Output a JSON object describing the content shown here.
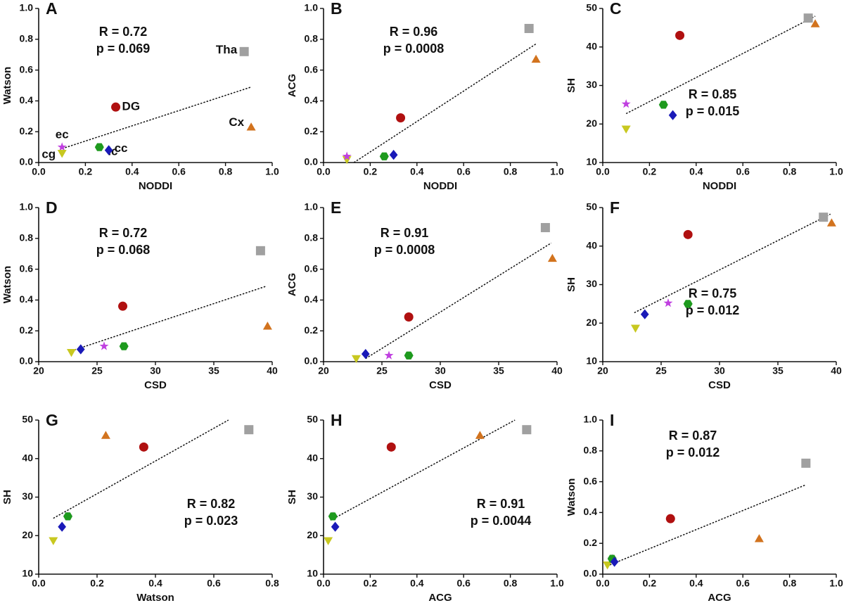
{
  "chart_data": [
    {
      "type": "scatter",
      "panel": "A",
      "xlabel": "NODDI",
      "ylabel": "Watson",
      "annotations": [
        "R = 0.72",
        "p = 0.069"
      ],
      "xlim": [
        0,
        1
      ],
      "ylim": [
        0,
        1
      ],
      "xticks": [
        {
          "value": 0,
          "label": "0.0"
        },
        0.2,
        0.4,
        0.6,
        0.8,
        {
          "value": 1,
          "label": "1.0"
        }
      ],
      "yticks": [
        {
          "value": 0,
          "label": "0.0"
        },
        0.2,
        0.4,
        0.6,
        0.8,
        {
          "value": 1,
          "label": "1.0"
        }
      ],
      "series": [
        {
          "name": "Tha",
          "color": "#a0a0a0",
          "marker": "square",
          "x": [
            0.88
          ],
          "y": [
            0.72
          ]
        },
        {
          "name": "DG",
          "color": "#b01010",
          "marker": "circle",
          "x": [
            0.33
          ],
          "y": [
            0.36
          ]
        },
        {
          "name": "Cx",
          "color": "#d2731e",
          "marker": "triangle-up",
          "x": [
            0.91
          ],
          "y": [
            0.23
          ]
        },
        {
          "name": "ec",
          "color": "#c040e0",
          "marker": "star",
          "x": [
            0.1
          ],
          "y": [
            0.1
          ]
        },
        {
          "name": "cg",
          "color": "#c8c820",
          "marker": "triangle-down",
          "x": [
            0.1
          ],
          "y": [
            0.06
          ]
        },
        {
          "name": "ic",
          "color": "#1e9a1e",
          "marker": "hexagon",
          "x": [
            0.26
          ],
          "y": [
            0.1
          ]
        },
        {
          "name": "cc",
          "color": "#1a1ab8",
          "marker": "diamond",
          "x": [
            0.3
          ],
          "y": [
            0.08
          ]
        }
      ],
      "fit": {
        "x": [
          0.1,
          0.91
        ],
        "y": [
          0.09,
          0.49
        ]
      }
    },
    {
      "type": "scatter",
      "panel": "B",
      "xlabel": "NODDI",
      "ylabel": "ACG",
      "annotations": [
        "R = 0.96",
        "p = 0.0008"
      ],
      "xlim": [
        0,
        1
      ],
      "ylim": [
        0,
        1
      ],
      "xticks": [
        {
          "value": 0,
          "label": "0.0"
        },
        0.2,
        0.4,
        0.6,
        0.8,
        {
          "value": 1,
          "label": "1.0"
        }
      ],
      "yticks": [
        {
          "value": 0,
          "label": "0.0"
        },
        0.2,
        0.4,
        0.6,
        0.8,
        {
          "value": 1,
          "label": "1.0"
        }
      ],
      "series": [
        {
          "color": "#a0a0a0",
          "marker": "square",
          "x": [
            0.88
          ],
          "y": [
            0.87
          ]
        },
        {
          "color": "#b01010",
          "marker": "circle",
          "x": [
            0.33
          ],
          "y": [
            0.29
          ]
        },
        {
          "color": "#d2731e",
          "marker": "triangle-up",
          "x": [
            0.91
          ],
          "y": [
            0.67
          ]
        },
        {
          "color": "#c8c820",
          "marker": "triangle-down",
          "x": [
            0.1
          ],
          "y": [
            0.02
          ]
        },
        {
          "color": "#c040e0",
          "marker": "star",
          "x": [
            0.1
          ],
          "y": [
            0.04
          ]
        },
        {
          "color": "#1e9a1e",
          "marker": "hexagon",
          "x": [
            0.26
          ],
          "y": [
            0.04
          ]
        },
        {
          "color": "#1a1ab8",
          "marker": "diamond",
          "x": [
            0.3
          ],
          "y": [
            0.05
          ]
        }
      ],
      "fit": {
        "x": [
          0.13,
          0.91
        ],
        "y": [
          0,
          0.77
        ]
      }
    },
    {
      "type": "scatter",
      "panel": "C",
      "xlabel": "NODDI",
      "ylabel": "SH",
      "annotations": [
        "R = 0.85",
        "p = 0.015"
      ],
      "xlim": [
        0,
        1
      ],
      "ylim": [
        10,
        50
      ],
      "xticks": [
        {
          "value": 0,
          "label": "0.0"
        },
        0.2,
        0.4,
        0.6,
        0.8,
        {
          "value": 1,
          "label": "1.0"
        }
      ],
      "yticks": [
        10,
        20,
        30,
        40,
        50
      ],
      "series": [
        {
          "color": "#a0a0a0",
          "marker": "square",
          "x": [
            0.88
          ],
          "y": [
            47.5
          ]
        },
        {
          "color": "#b01010",
          "marker": "circle",
          "x": [
            0.33
          ],
          "y": [
            43
          ]
        },
        {
          "color": "#d2731e",
          "marker": "triangle-up",
          "x": [
            0.91
          ],
          "y": [
            46
          ]
        },
        {
          "color": "#c040e0",
          "marker": "star",
          "x": [
            0.1
          ],
          "y": [
            25.2
          ]
        },
        {
          "color": "#c8c820",
          "marker": "triangle-down",
          "x": [
            0.1
          ],
          "y": [
            18.7
          ]
        },
        {
          "color": "#1e9a1e",
          "marker": "hexagon",
          "x": [
            0.26
          ],
          "y": [
            25
          ]
        },
        {
          "color": "#1a1ab8",
          "marker": "diamond",
          "x": [
            0.3
          ],
          "y": [
            22.3
          ]
        }
      ],
      "fit": {
        "x": [
          0.1,
          0.91
        ],
        "y": [
          22.7,
          48
        ]
      }
    },
    {
      "type": "scatter",
      "panel": "D",
      "xlabel": "CSD",
      "ylabel": "Watson",
      "annotations": [
        "R = 0.72",
        "p = 0.068"
      ],
      "xlim": [
        20,
        40
      ],
      "ylim": [
        0,
        1
      ],
      "xticks": [
        20,
        25,
        30,
        35,
        40
      ],
      "yticks": [
        {
          "value": 0,
          "label": "0.0"
        },
        0.2,
        0.4,
        0.6,
        0.8,
        {
          "value": 1,
          "label": "1.0"
        }
      ],
      "series": [
        {
          "color": "#a0a0a0",
          "marker": "square",
          "x": [
            39
          ],
          "y": [
            0.72
          ]
        },
        {
          "color": "#b01010",
          "marker": "circle",
          "x": [
            27.2
          ],
          "y": [
            0.36
          ]
        },
        {
          "color": "#d2731e",
          "marker": "triangle-up",
          "x": [
            39.6
          ],
          "y": [
            0.23
          ]
        },
        {
          "color": "#c040e0",
          "marker": "star",
          "x": [
            25.6
          ],
          "y": [
            0.1
          ]
        },
        {
          "color": "#c8c820",
          "marker": "triangle-down",
          "x": [
            22.8
          ],
          "y": [
            0.06
          ]
        },
        {
          "color": "#1e9a1e",
          "marker": "hexagon",
          "x": [
            27.3
          ],
          "y": [
            0.1
          ]
        },
        {
          "color": "#1a1ab8",
          "marker": "diamond",
          "x": [
            23.6
          ],
          "y": [
            0.08
          ]
        }
      ],
      "fit": {
        "x": [
          22.8,
          39.5
        ],
        "y": [
          0.07,
          0.49
        ]
      }
    },
    {
      "type": "scatter",
      "panel": "E",
      "xlabel": "CSD",
      "ylabel": "ACG",
      "annotations": [
        "R = 0.91",
        "p = 0.0008"
      ],
      "xlim": [
        20,
        40
      ],
      "ylim": [
        0,
        1
      ],
      "xticks": [
        20,
        25,
        30,
        35,
        40
      ],
      "yticks": [
        {
          "value": 0,
          "label": "0.0"
        },
        0.2,
        0.4,
        0.6,
        0.8,
        {
          "value": 1,
          "label": "1.0"
        }
      ],
      "series": [
        {
          "color": "#a0a0a0",
          "marker": "square",
          "x": [
            39
          ],
          "y": [
            0.87
          ]
        },
        {
          "color": "#b01010",
          "marker": "circle",
          "x": [
            27.3
          ],
          "y": [
            0.29
          ]
        },
        {
          "color": "#d2731e",
          "marker": "triangle-up",
          "x": [
            39.6
          ],
          "y": [
            0.67
          ]
        },
        {
          "color": "#c040e0",
          "marker": "star",
          "x": [
            25.6
          ],
          "y": [
            0.04
          ]
        },
        {
          "color": "#c8c820",
          "marker": "triangle-down",
          "x": [
            22.8
          ],
          "y": [
            0.02
          ]
        },
        {
          "color": "#1e9a1e",
          "marker": "hexagon",
          "x": [
            27.3
          ],
          "y": [
            0.04
          ]
        },
        {
          "color": "#1a1ab8",
          "marker": "diamond",
          "x": [
            23.6
          ],
          "y": [
            0.05
          ]
        }
      ],
      "fit": {
        "x": [
          23.6,
          39.5
        ],
        "y": [
          0.02,
          0.77
        ]
      }
    },
    {
      "type": "scatter",
      "panel": "F",
      "xlabel": "CSD",
      "ylabel": "SH",
      "annotations": [
        "R = 0.75",
        "p = 0.012"
      ],
      "xlim": [
        20,
        40
      ],
      "ylim": [
        10,
        50
      ],
      "xticks": [
        20,
        25,
        30,
        35,
        40
      ],
      "yticks": [
        10,
        20,
        30,
        40,
        50
      ],
      "series": [
        {
          "color": "#a0a0a0",
          "marker": "square",
          "x": [
            38.9
          ],
          "y": [
            47.5
          ]
        },
        {
          "color": "#b01010",
          "marker": "circle",
          "x": [
            27.3
          ],
          "y": [
            43
          ]
        },
        {
          "color": "#d2731e",
          "marker": "triangle-up",
          "x": [
            39.6
          ],
          "y": [
            46
          ]
        },
        {
          "color": "#c040e0",
          "marker": "star",
          "x": [
            25.6
          ],
          "y": [
            25.2
          ]
        },
        {
          "color": "#c8c820",
          "marker": "triangle-down",
          "x": [
            22.8
          ],
          "y": [
            18.7
          ]
        },
        {
          "color": "#1e9a1e",
          "marker": "hexagon",
          "x": [
            27.3
          ],
          "y": [
            25
          ]
        },
        {
          "color": "#1a1ab8",
          "marker": "diamond",
          "x": [
            23.6
          ],
          "y": [
            22.3
          ]
        }
      ],
      "fit": {
        "x": [
          22.7,
          39.5
        ],
        "y": [
          22.7,
          48.3
        ]
      }
    },
    {
      "type": "scatter",
      "panel": "G",
      "xlabel": "Watson",
      "ylabel": "SH",
      "annotations": [
        "R = 0.82",
        "p = 0.023"
      ],
      "xlim": [
        0,
        0.8
      ],
      "ylim": [
        10,
        50
      ],
      "xticks": [
        {
          "value": 0,
          "label": "0.0"
        },
        0.2,
        0.4,
        0.6,
        0.8
      ],
      "yticks": [
        10,
        20,
        30,
        40,
        50
      ],
      "series": [
        {
          "color": "#a0a0a0",
          "marker": "square",
          "x": [
            0.72
          ],
          "y": [
            47.5
          ]
        },
        {
          "color": "#b01010",
          "marker": "circle",
          "x": [
            0.36
          ],
          "y": [
            43
          ]
        },
        {
          "color": "#d2731e",
          "marker": "triangle-up",
          "x": [
            0.23
          ],
          "y": [
            46
          ]
        },
        {
          "color": "#c040e0",
          "marker": "star",
          "x": [
            0.1
          ],
          "y": [
            25
          ]
        },
        {
          "color": "#c8c820",
          "marker": "triangle-down",
          "x": [
            0.05
          ],
          "y": [
            18.7
          ]
        },
        {
          "color": "#1e9a1e",
          "marker": "hexagon",
          "x": [
            0.1
          ],
          "y": [
            25
          ]
        },
        {
          "color": "#1a1ab8",
          "marker": "diamond",
          "x": [
            0.08
          ],
          "y": [
            22.3
          ]
        }
      ],
      "fit": {
        "x": [
          0.05,
          0.65
        ],
        "y": [
          24.5,
          50
        ]
      }
    },
    {
      "type": "scatter",
      "panel": "H",
      "xlabel": "ACG",
      "ylabel": "SH",
      "annotations": [
        "R = 0.91",
        "p = 0.0044"
      ],
      "xlim": [
        0,
        1
      ],
      "ylim": [
        10,
        50
      ],
      "xticks": [
        {
          "value": 0,
          "label": "0.0"
        },
        0.2,
        0.4,
        0.6,
        0.8,
        {
          "value": 1,
          "label": "1.0"
        }
      ],
      "yticks": [
        10,
        20,
        30,
        40,
        50
      ],
      "series": [
        {
          "color": "#a0a0a0",
          "marker": "square",
          "x": [
            0.87
          ],
          "y": [
            47.5
          ]
        },
        {
          "color": "#b01010",
          "marker": "circle",
          "x": [
            0.29
          ],
          "y": [
            43
          ]
        },
        {
          "color": "#d2731e",
          "marker": "triangle-up",
          "x": [
            0.67
          ],
          "y": [
            46
          ]
        },
        {
          "color": "#c040e0",
          "marker": "star",
          "x": [
            0.04
          ],
          "y": [
            25
          ]
        },
        {
          "color": "#c8c820",
          "marker": "triangle-down",
          "x": [
            0.02
          ],
          "y": [
            18.7
          ]
        },
        {
          "color": "#1e9a1e",
          "marker": "hexagon",
          "x": [
            0.04
          ],
          "y": [
            25
          ]
        },
        {
          "color": "#1a1ab8",
          "marker": "diamond",
          "x": [
            0.05
          ],
          "y": [
            22.3
          ]
        }
      ],
      "fit": {
        "x": [
          0.03,
          0.82
        ],
        "y": [
          24,
          50
        ]
      }
    },
    {
      "type": "scatter",
      "panel": "I",
      "xlabel": "ACG",
      "ylabel": "Watson",
      "annotations": [
        "R = 0.87",
        "p = 0.012"
      ],
      "xlim": [
        0,
        1
      ],
      "ylim": [
        0,
        1
      ],
      "xticks": [
        {
          "value": 0,
          "label": "0.0"
        },
        0.2,
        0.4,
        0.6,
        0.8,
        {
          "value": 1,
          "label": "1.0"
        }
      ],
      "yticks": [
        {
          "value": 0,
          "label": "0.0"
        },
        0.2,
        0.4,
        0.6,
        0.8,
        {
          "value": 1,
          "label": "1.0"
        }
      ],
      "series": [
        {
          "color": "#a0a0a0",
          "marker": "square",
          "x": [
            0.87
          ],
          "y": [
            0.72
          ]
        },
        {
          "color": "#b01010",
          "marker": "circle",
          "x": [
            0.29
          ],
          "y": [
            0.36
          ]
        },
        {
          "color": "#d2731e",
          "marker": "triangle-up",
          "x": [
            0.67
          ],
          "y": [
            0.23
          ]
        },
        {
          "color": "#c040e0",
          "marker": "star",
          "x": [
            0.04
          ],
          "y": [
            0.1
          ]
        },
        {
          "color": "#c8c820",
          "marker": "triangle-down",
          "x": [
            0.02
          ],
          "y": [
            0.06
          ]
        },
        {
          "color": "#1e9a1e",
          "marker": "hexagon",
          "x": [
            0.04
          ],
          "y": [
            0.1
          ]
        },
        {
          "color": "#1a1ab8",
          "marker": "diamond",
          "x": [
            0.05
          ],
          "y": [
            0.08
          ]
        }
      ],
      "fit": {
        "x": [
          0.03,
          0.87
        ],
        "y": [
          0.06,
          0.58
        ]
      }
    }
  ]
}
